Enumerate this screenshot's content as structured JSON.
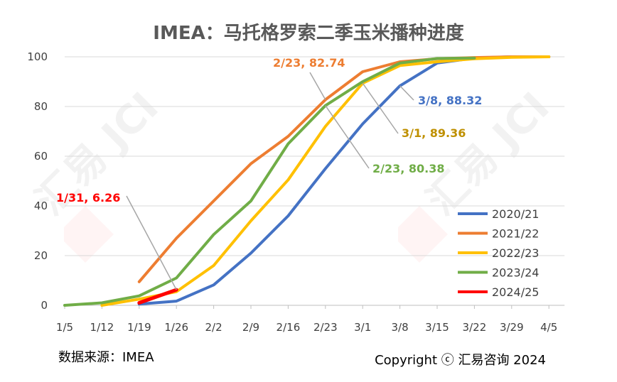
{
  "chart_data": {
    "type": "line",
    "title": "IMEA：马托格罗索二季玉米播种进度",
    "xlabel": "",
    "ylabel": "",
    "ylim": [
      0,
      100
    ],
    "yticks": [
      0,
      20,
      40,
      60,
      80,
      100
    ],
    "categories": [
      "1/5",
      "1/12",
      "1/19",
      "1/26",
      "2/2",
      "2/9",
      "2/16",
      "2/23",
      "3/1",
      "3/8",
      "3/15",
      "3/22",
      "3/29",
      "4/5"
    ],
    "grid": "horizontal",
    "legend_position": "right",
    "series": [
      {
        "name": "2020/21",
        "color": "#4472C4",
        "values": [
          null,
          null,
          0.5,
          1.7,
          8.2,
          21,
          36,
          55,
          73,
          88.32,
          97.5,
          99.5,
          100,
          100
        ]
      },
      {
        "name": "2021/22",
        "color": "#ED7D31",
        "values": [
          null,
          null,
          9.5,
          27,
          42,
          57,
          68,
          82.74,
          94,
          98,
          99.2,
          99.7,
          100,
          100
        ]
      },
      {
        "name": "2022/23",
        "color": "#FFC000",
        "values": [
          null,
          0,
          2.5,
          5.5,
          16,
          34,
          50.5,
          72,
          89.36,
          96.5,
          98,
          99.2,
          99.8,
          100
        ]
      },
      {
        "name": "2023/24",
        "color": "#70AD47",
        "values": [
          0,
          1,
          3.8,
          11,
          28.5,
          42,
          65,
          80.38,
          90,
          97.5,
          99.3,
          99.5,
          null,
          null
        ]
      },
      {
        "name": "2024/25",
        "color": "#FF0000",
        "values": [
          null,
          null,
          1,
          6.26,
          null,
          null,
          null,
          null,
          null,
          null,
          null,
          null,
          null,
          null
        ]
      }
    ],
    "annotations": [
      {
        "text": "2/23, 82.74",
        "color": "#ED7D31",
        "series": "2021/22",
        "category": "2/23"
      },
      {
        "text": "3/8, 88.32",
        "color": "#4472C4",
        "series": "2020/21",
        "category": "3/8"
      },
      {
        "text": "3/1, 89.36",
        "color": "#BF9000",
        "series": "2022/23",
        "category": "3/1"
      },
      {
        "text": "2/23, 80.38",
        "color": "#70AD47",
        "series": "2023/24",
        "category": "2/23"
      },
      {
        "text": "1/31, 6.26",
        "color": "#FF0000",
        "series": "2024/25",
        "category": "1/26"
      }
    ],
    "watermark": "汇易 JCI"
  },
  "footer": {
    "source": "数据来源：IMEA",
    "copyright": "Copyright ⓒ 汇易咨询 2024"
  }
}
